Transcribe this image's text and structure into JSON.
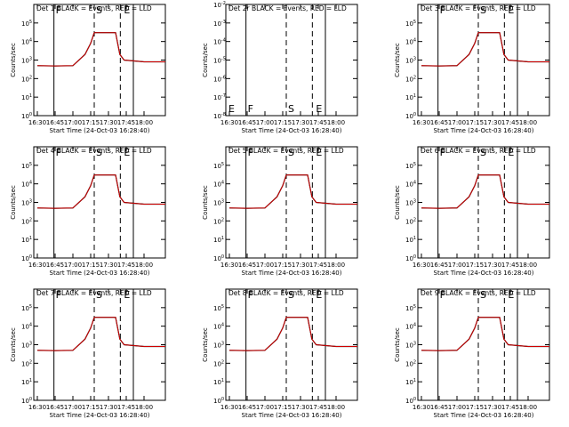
{
  "chart_data": [
    {
      "type": "line",
      "title": "Det 1  BLACK = Events, RED = LLD",
      "xlabel": "Start Time (24-Oct-03 16:28:40)",
      "ylabel": "Counts/sec",
      "yscale": "log",
      "ylim": [
        1,
        1000000
      ],
      "xticks": [
        "16:30",
        "16:45",
        "17:00",
        "17:15",
        "17:30",
        "17:45",
        "18:00"
      ],
      "ytick_exponents": [
        0,
        1,
        2,
        3,
        4,
        5
      ],
      "markers": {
        "solid": [
          "16:44",
          "17:51"
        ],
        "dashed": [
          "17:18",
          "17:40"
        ]
      },
      "marker_labels": [
        "F",
        "S",
        "E"
      ],
      "series": [
        {
          "name": "BLACK = Events",
          "color": "#000000",
          "x": [
            16.5,
            16.75,
            17.0,
            17.17,
            17.25,
            17.3,
            17.6,
            17.66,
            17.72,
            18.0,
            18.3
          ],
          "y": [
            500,
            480,
            500,
            2000,
            8000,
            30000,
            30000,
            2000,
            1000,
            800,
            800
          ]
        },
        {
          "name": "RED = LLD",
          "color": "#d00000",
          "x": [
            16.5,
            16.75,
            17.0,
            17.17,
            17.25,
            17.3,
            17.6,
            17.66,
            17.72,
            18.0,
            18.3
          ],
          "y": [
            500,
            480,
            500,
            2000,
            8000,
            30000,
            30000,
            2000,
            1000,
            800,
            800
          ]
        }
      ]
    },
    {
      "type": "line",
      "title": "Det 2r BLACK = Events, RED = LLD",
      "xlabel": "Start Time (24-Oct-03 16:28:40)",
      "ylabel": "Counts/sec",
      "yscale": "log",
      "ylim": [
        1e-08,
        0.01
      ],
      "xticks": [
        "16:30",
        "16:45",
        "17:00",
        "17:15",
        "17:30",
        "17:45",
        "18:00"
      ],
      "ytick_exponents": [
        -8,
        -7,
        -6,
        -5,
        -4,
        -3,
        -2
      ],
      "markers": {
        "solid": [
          "16:44",
          "17:51"
        ],
        "dashed": [
          "17:18",
          "17:40"
        ]
      },
      "marker_labels": [
        "E",
        "F",
        "S",
        "E"
      ],
      "series": []
    },
    {
      "type": "line",
      "title": "Det 3  BLACK = Events, RED = LLD",
      "xlabel": "Start Time (24-Oct-03 16:28:40)",
      "ylabel": "Counts/sec",
      "yscale": "log",
      "ylim": [
        1,
        1000000
      ],
      "xticks": [
        "16:30",
        "16:45",
        "17:00",
        "17:15",
        "17:30",
        "17:45",
        "18:00"
      ],
      "ytick_exponents": [
        0,
        1,
        2,
        3,
        4,
        5
      ],
      "markers": {
        "solid": [
          "16:44",
          "17:51"
        ],
        "dashed": [
          "17:18",
          "17:40"
        ]
      },
      "marker_labels": [
        "F",
        "S",
        "E"
      ],
      "series": [
        {
          "name": "BLACK = Events",
          "color": "#000000",
          "x": [
            16.5,
            16.75,
            17.0,
            17.17,
            17.25,
            17.3,
            17.6,
            17.66,
            17.72,
            18.0,
            18.3
          ],
          "y": [
            500,
            480,
            500,
            2000,
            8000,
            30000,
            30000,
            2000,
            1000,
            800,
            800
          ]
        },
        {
          "name": "RED = LLD",
          "color": "#d00000",
          "x": [
            16.5,
            16.75,
            17.0,
            17.17,
            17.25,
            17.3,
            17.6,
            17.66,
            17.72,
            18.0,
            18.3
          ],
          "y": [
            500,
            480,
            500,
            2000,
            8000,
            30000,
            30000,
            2000,
            1000,
            800,
            800
          ]
        }
      ]
    },
    {
      "type": "line",
      "title": "Det 4  BLACK = Events, RED = LLD",
      "xlabel": "Start Time (24-Oct-03 16:28:40)",
      "ylabel": "Counts/sec",
      "yscale": "log",
      "ylim": [
        1,
        1000000
      ],
      "xticks": [
        "16:30",
        "16:45",
        "17:00",
        "17:15",
        "17:30",
        "17:45",
        "18:00"
      ],
      "ytick_exponents": [
        0,
        1,
        2,
        3,
        4,
        5
      ],
      "markers": {
        "solid": [
          "16:44",
          "17:51"
        ],
        "dashed": [
          "17:18",
          "17:40"
        ]
      },
      "marker_labels": [
        "F",
        "S",
        "E"
      ],
      "series": [
        {
          "name": "BLACK = Events",
          "color": "#000000",
          "x": [
            16.5,
            16.75,
            17.0,
            17.17,
            17.25,
            17.3,
            17.6,
            17.66,
            17.72,
            18.0,
            18.3
          ],
          "y": [
            500,
            480,
            500,
            2000,
            8000,
            30000,
            30000,
            2000,
            1000,
            800,
            800
          ]
        },
        {
          "name": "RED = LLD",
          "color": "#d00000",
          "x": [
            16.5,
            16.75,
            17.0,
            17.17,
            17.25,
            17.3,
            17.6,
            17.66,
            17.72,
            18.0,
            18.3
          ],
          "y": [
            500,
            480,
            500,
            2000,
            8000,
            30000,
            30000,
            2000,
            1000,
            800,
            800
          ]
        }
      ]
    },
    {
      "type": "line",
      "title": "Det 5  BLACK = Events, RED = LLD",
      "xlabel": "Start Time (24-Oct-03 16:28:40)",
      "ylabel": "Counts/sec",
      "yscale": "log",
      "ylim": [
        1,
        1000000
      ],
      "xticks": [
        "16:30",
        "16:45",
        "17:00",
        "17:15",
        "17:30",
        "17:45",
        "18:00"
      ],
      "ytick_exponents": [
        0,
        1,
        2,
        3,
        4,
        5
      ],
      "markers": {
        "solid": [
          "16:44",
          "17:51"
        ],
        "dashed": [
          "17:18",
          "17:40"
        ]
      },
      "marker_labels": [
        "F",
        "S",
        "E"
      ],
      "series": [
        {
          "name": "BLACK = Events",
          "color": "#000000",
          "x": [
            16.5,
            16.75,
            17.0,
            17.17,
            17.25,
            17.3,
            17.6,
            17.66,
            17.72,
            18.0,
            18.3
          ],
          "y": [
            500,
            480,
            500,
            2000,
            8000,
            30000,
            30000,
            2000,
            1000,
            800,
            800
          ]
        },
        {
          "name": "RED = LLD",
          "color": "#d00000",
          "x": [
            16.5,
            16.75,
            17.0,
            17.17,
            17.25,
            17.3,
            17.6,
            17.66,
            17.72,
            18.0,
            18.3
          ],
          "y": [
            500,
            480,
            500,
            2000,
            8000,
            30000,
            30000,
            2000,
            1000,
            800,
            800
          ]
        }
      ]
    },
    {
      "type": "line",
      "title": "Det 6  BLACK = Events, RED = LLD",
      "xlabel": "Start Time (24-Oct-03 16:28:40)",
      "ylabel": "Counts/sec",
      "yscale": "log",
      "ylim": [
        1,
        1000000
      ],
      "xticks": [
        "16:30",
        "16:45",
        "17:00",
        "17:15",
        "17:30",
        "17:45",
        "18:00"
      ],
      "ytick_exponents": [
        0,
        1,
        2,
        3,
        4,
        5
      ],
      "markers": {
        "solid": [
          "16:44",
          "17:51"
        ],
        "dashed": [
          "17:18",
          "17:40"
        ]
      },
      "marker_labels": [
        "F",
        "S",
        "E"
      ],
      "series": [
        {
          "name": "BLACK = Events",
          "color": "#000000",
          "x": [
            16.5,
            16.75,
            17.0,
            17.17,
            17.25,
            17.3,
            17.6,
            17.66,
            17.72,
            18.0,
            18.3
          ],
          "y": [
            500,
            480,
            500,
            2000,
            8000,
            30000,
            30000,
            2000,
            1000,
            800,
            800
          ]
        },
        {
          "name": "RED = LLD",
          "color": "#d00000",
          "x": [
            16.5,
            16.75,
            17.0,
            17.17,
            17.25,
            17.3,
            17.6,
            17.66,
            17.72,
            18.0,
            18.3
          ],
          "y": [
            500,
            480,
            500,
            2000,
            8000,
            30000,
            30000,
            2000,
            1000,
            800,
            800
          ]
        }
      ]
    },
    {
      "type": "line",
      "title": "Det 7  BLACK = Events, RED = LLD",
      "xlabel": "Start Time (24-Oct-03 16:28:40)",
      "ylabel": "Counts/sec",
      "yscale": "log",
      "ylim": [
        1,
        1000000
      ],
      "xticks": [
        "16:30",
        "16:45",
        "17:00",
        "17:15",
        "17:30",
        "17:45",
        "18:00"
      ],
      "ytick_exponents": [
        0,
        1,
        2,
        3,
        4,
        5
      ],
      "markers": {
        "solid": [
          "16:44",
          "17:51"
        ],
        "dashed": [
          "17:18",
          "17:40"
        ]
      },
      "marker_labels": [
        "F",
        "S",
        "E"
      ],
      "series": [
        {
          "name": "BLACK = Events",
          "color": "#000000",
          "x": [
            16.5,
            16.75,
            17.0,
            17.17,
            17.25,
            17.3,
            17.6,
            17.66,
            17.72,
            18.0,
            18.3
          ],
          "y": [
            500,
            480,
            500,
            2000,
            8000,
            30000,
            30000,
            2000,
            1000,
            800,
            800
          ]
        },
        {
          "name": "RED = LLD",
          "color": "#d00000",
          "x": [
            16.5,
            16.75,
            17.0,
            17.17,
            17.25,
            17.3,
            17.6,
            17.66,
            17.72,
            18.0,
            18.3
          ],
          "y": [
            500,
            480,
            500,
            2000,
            8000,
            30000,
            30000,
            2000,
            1000,
            800,
            800
          ]
        }
      ]
    },
    {
      "type": "line",
      "title": "Det 8  BLACK = Events, RED = LLD",
      "xlabel": "Start Time (24-Oct-03 16:28:40)",
      "ylabel": "Counts/sec",
      "yscale": "log",
      "ylim": [
        1,
        1000000
      ],
      "xticks": [
        "16:30",
        "16:45",
        "17:00",
        "17:15",
        "17:30",
        "17:45",
        "18:00"
      ],
      "ytick_exponents": [
        0,
        1,
        2,
        3,
        4,
        5
      ],
      "markers": {
        "solid": [
          "16:44",
          "17:51"
        ],
        "dashed": [
          "17:18",
          "17:40"
        ]
      },
      "marker_labels": [
        "F",
        "S",
        "E"
      ],
      "series": [
        {
          "name": "BLACK = Events",
          "color": "#000000",
          "x": [
            16.5,
            16.75,
            17.0,
            17.17,
            17.25,
            17.3,
            17.6,
            17.66,
            17.72,
            18.0,
            18.3
          ],
          "y": [
            500,
            480,
            500,
            2000,
            8000,
            30000,
            30000,
            2000,
            1000,
            800,
            800
          ]
        },
        {
          "name": "RED = LLD",
          "color": "#d00000",
          "x": [
            16.5,
            16.75,
            17.0,
            17.17,
            17.25,
            17.3,
            17.6,
            17.66,
            17.72,
            18.0,
            18.3
          ],
          "y": [
            500,
            480,
            500,
            2000,
            8000,
            30000,
            30000,
            2000,
            1000,
            800,
            800
          ]
        }
      ]
    },
    {
      "type": "line",
      "title": "Det 9  BLACK = Events, RED = LLD",
      "xlabel": "Start Time (24-Oct-03 16:28:40)",
      "ylabel": "Counts/sec",
      "yscale": "log",
      "ylim": [
        1,
        1000000
      ],
      "xticks": [
        "16:30",
        "16:45",
        "17:00",
        "17:15",
        "17:30",
        "17:45",
        "18:00"
      ],
      "ytick_exponents": [
        0,
        1,
        2,
        3,
        4,
        5
      ],
      "markers": {
        "solid": [
          "16:44",
          "17:51"
        ],
        "dashed": [
          "17:18",
          "17:40"
        ]
      },
      "marker_labels": [
        "F",
        "S",
        "E"
      ],
      "series": [
        {
          "name": "BLACK = Events",
          "color": "#000000",
          "x": [
            16.5,
            16.75,
            17.0,
            17.17,
            17.25,
            17.3,
            17.6,
            17.66,
            17.72,
            18.0,
            18.3
          ],
          "y": [
            500,
            480,
            500,
            2000,
            8000,
            30000,
            30000,
            2000,
            1000,
            800,
            800
          ]
        },
        {
          "name": "RED = LLD",
          "color": "#d00000",
          "x": [
            16.5,
            16.75,
            17.0,
            17.17,
            17.25,
            17.3,
            17.6,
            17.66,
            17.72,
            18.0,
            18.3
          ],
          "y": [
            500,
            480,
            500,
            2000,
            8000,
            30000,
            30000,
            2000,
            1000,
            800,
            800
          ]
        }
      ]
    }
  ]
}
